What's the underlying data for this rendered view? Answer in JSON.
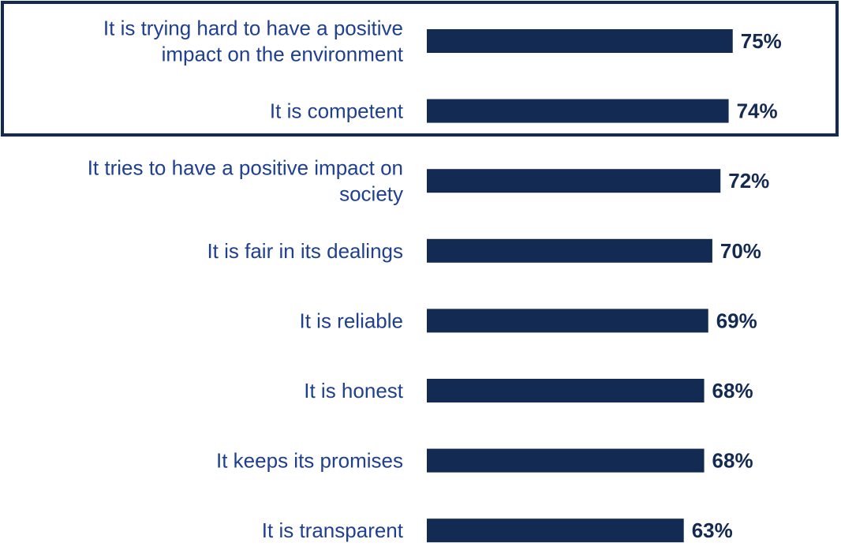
{
  "colors": {
    "bar": "#132a52",
    "value_label": "#132a52",
    "category_label": "#1f3f8f",
    "highlight_border": "#132a52"
  },
  "chart_data": {
    "type": "bar",
    "orientation": "horizontal",
    "categories": [
      [
        "It is trying hard to have a positive",
        "impact on the environment"
      ],
      [
        "It is competent"
      ],
      [
        "It tries to have a positive impact on",
        "society"
      ],
      [
        "It is fair in its dealings"
      ],
      [
        "It is reliable"
      ],
      [
        "It is honest"
      ],
      [
        "It keeps its promises"
      ],
      [
        "It is transparent"
      ]
    ],
    "values": [
      75,
      74,
      72,
      70,
      69,
      68,
      68,
      63
    ],
    "value_labels": [
      "75%",
      "74%",
      "72%",
      "70%",
      "69%",
      "68%",
      "68%",
      "63%"
    ],
    "value_unit": "%",
    "highlighted_categories": [
      0,
      1
    ],
    "title": "",
    "xlabel": "",
    "ylabel": "",
    "grid": false,
    "legend": false
  }
}
